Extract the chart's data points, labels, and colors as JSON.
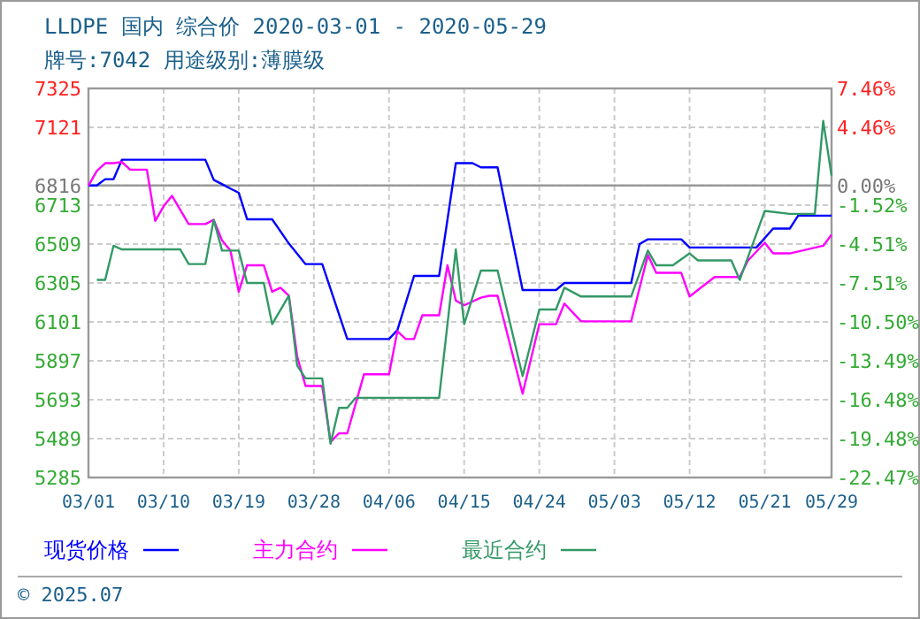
{
  "chart_data": {
    "type": "line",
    "title": "LLDPE 国内 综合价 2020-03-01 - 2020-05-29",
    "subtitle": "牌号:7042 用途级别:薄膜级",
    "xlim": [
      "2020-03-01",
      "2020-05-29"
    ],
    "xticks": [
      {
        "value": "2020-03-01",
        "label": "03/01"
      },
      {
        "value": "2020-03-10",
        "label": "03/10"
      },
      {
        "value": "2020-03-19",
        "label": "03/19"
      },
      {
        "value": "2020-03-28",
        "label": "03/28"
      },
      {
        "value": "2020-04-06",
        "label": "04/06"
      },
      {
        "value": "2020-04-15",
        "label": "04/15"
      },
      {
        "value": "2020-04-24",
        "label": "04/24"
      },
      {
        "value": "2020-05-03",
        "label": "05/03"
      },
      {
        "value": "2020-05-12",
        "label": "05/12"
      },
      {
        "value": "2020-05-21",
        "label": "05/21"
      },
      {
        "value": "2020-05-29",
        "label": "05/29"
      }
    ],
    "ylim": [
      5285,
      7325
    ],
    "yticks": [
      5285,
      5489,
      5693,
      5897,
      6101,
      6305,
      6509,
      6713,
      6816,
      7121,
      7325
    ],
    "y2lim": [
      -22.47,
      7.46
    ],
    "y2ticks": [
      {
        "value": -22.47,
        "label": "-22.47%"
      },
      {
        "value": -19.48,
        "label": "-19.48%"
      },
      {
        "value": -16.48,
        "label": "-16.48%"
      },
      {
        "value": -13.49,
        "label": "-13.49%"
      },
      {
        "value": -10.5,
        "label": "-10.50%"
      },
      {
        "value": -7.51,
        "label": "-7.51%"
      },
      {
        "value": -4.51,
        "label": "-4.51%"
      },
      {
        "value": -1.52,
        "label": "-1.52%"
      },
      {
        "value": 0,
        "label": "0.00%"
      },
      {
        "value": 4.46,
        "label": "4.46%"
      },
      {
        "value": 7.46,
        "label": "7.46%"
      }
    ],
    "grid": true,
    "legend": "bottom",
    "ref_lines": [
      {
        "axis": "y",
        "value": 6816,
        "color": "#999999"
      }
    ],
    "annotations": [
      "© 2025.07"
    ],
    "series": [
      {
        "name": "现货价格",
        "color": "#0000ff",
        "x": [
          "2020-03-01",
          "2020-03-02",
          "2020-03-03",
          "2020-03-04",
          "2020-03-05",
          "2020-03-15",
          "2020-03-16",
          "2020-03-18",
          "2020-03-19",
          "2020-03-20",
          "2020-03-23",
          "2020-03-25",
          "2020-03-27",
          "2020-03-29",
          "2020-04-01",
          "2020-04-06",
          "2020-04-07",
          "2020-04-09",
          "2020-04-12",
          "2020-04-14",
          "2020-04-16",
          "2020-04-17",
          "2020-04-19",
          "2020-04-22",
          "2020-04-26",
          "2020-04-27",
          "2020-05-05",
          "2020-05-06",
          "2020-05-07",
          "2020-05-11",
          "2020-05-12",
          "2020-05-20",
          "2020-05-22",
          "2020-05-24",
          "2020-05-25",
          "2020-05-29"
        ],
        "values": [
          6816,
          6816,
          6849,
          6849,
          6951,
          6951,
          6846,
          6800,
          6778,
          6639,
          6639,
          6512,
          6404,
          6404,
          6011,
          6011,
          6058,
          6342,
          6342,
          6933,
          6933,
          6911,
          6911,
          6268,
          6268,
          6305,
          6305,
          6509,
          6534,
          6534,
          6491,
          6491,
          6590,
          6590,
          6658,
          6658
        ]
      },
      {
        "name": "主力合约",
        "color": "#ff00ff",
        "x": [
          "2020-03-01",
          "2020-03-02",
          "2020-03-03",
          "2020-03-04",
          "2020-03-05",
          "2020-03-06",
          "2020-03-08",
          "2020-03-09",
          "2020-03-10",
          "2020-03-11",
          "2020-03-13",
          "2020-03-15",
          "2020-03-16",
          "2020-03-17",
          "2020-03-18",
          "2020-03-19",
          "2020-03-20",
          "2020-03-22",
          "2020-03-23",
          "2020-03-24",
          "2020-03-25",
          "2020-03-26",
          "2020-03-27",
          "2020-03-29",
          "2020-03-30",
          "2020-03-31",
          "2020-04-01",
          "2020-04-03",
          "2020-04-06",
          "2020-04-07",
          "2020-04-08",
          "2020-04-09",
          "2020-04-10",
          "2020-04-12",
          "2020-04-13",
          "2020-04-14",
          "2020-04-15",
          "2020-04-17",
          "2020-04-18",
          "2020-04-19",
          "2020-04-22",
          "2020-04-24",
          "2020-04-26",
          "2020-04-27",
          "2020-04-29",
          "2020-05-05",
          "2020-05-07",
          "2020-05-08",
          "2020-05-11",
          "2020-05-12",
          "2020-05-15",
          "2020-05-18",
          "2020-05-19",
          "2020-05-21",
          "2020-05-22",
          "2020-05-24",
          "2020-05-28",
          "2020-05-29"
        ],
        "values": [
          6816,
          6892,
          6933,
          6933,
          6939,
          6899,
          6899,
          6630,
          6707,
          6762,
          6614,
          6614,
          6636,
          6528,
          6475,
          6259,
          6398,
          6398,
          6259,
          6280,
          6238,
          5919,
          5765,
          5765,
          5471,
          5517,
          5517,
          5826,
          5826,
          6052,
          6011,
          6011,
          6136,
          6136,
          6398,
          6213,
          6188,
          6228,
          6238,
          6238,
          5724,
          6089,
          6089,
          6197,
          6104,
          6104,
          6451,
          6358,
          6358,
          6234,
          6336,
          6336,
          6423,
          6516,
          6460,
          6460,
          6500,
          6558
        ]
      },
      {
        "name": "最近合约",
        "color": "#339966",
        "x": [
          "2020-03-02",
          "2020-03-03",
          "2020-03-04",
          "2020-03-05",
          "2020-03-12",
          "2020-03-13",
          "2020-03-15",
          "2020-03-16",
          "2020-03-17",
          "2020-03-19",
          "2020-03-20",
          "2020-03-22",
          "2020-03-23",
          "2020-03-25",
          "2020-03-26",
          "2020-03-27",
          "2020-03-29",
          "2020-03-30",
          "2020-03-31",
          "2020-04-01",
          "2020-04-02",
          "2020-04-12",
          "2020-04-13",
          "2020-04-14",
          "2020-04-15",
          "2020-04-17",
          "2020-04-19",
          "2020-04-22",
          "2020-04-24",
          "2020-04-26",
          "2020-04-27",
          "2020-04-29",
          "2020-05-05",
          "2020-05-07",
          "2020-05-08",
          "2020-05-10",
          "2020-05-12",
          "2020-05-13",
          "2020-05-17",
          "2020-05-18",
          "2020-05-21",
          "2020-05-24",
          "2020-05-27",
          "2020-05-28",
          "2020-05-29"
        ],
        "values": [
          6321,
          6321,
          6500,
          6481,
          6481,
          6404,
          6404,
          6636,
          6475,
          6475,
          6305,
          6305,
          6089,
          6238,
          5872,
          5805,
          5805,
          5462,
          5650,
          5650,
          5703,
          5703,
          6089,
          6481,
          6089,
          6370,
          6370,
          5817,
          6166,
          6166,
          6280,
          6234,
          6234,
          6475,
          6398,
          6398,
          6460,
          6423,
          6423,
          6321,
          6683,
          6667,
          6667,
          7155,
          6868
        ]
      }
    ]
  }
}
